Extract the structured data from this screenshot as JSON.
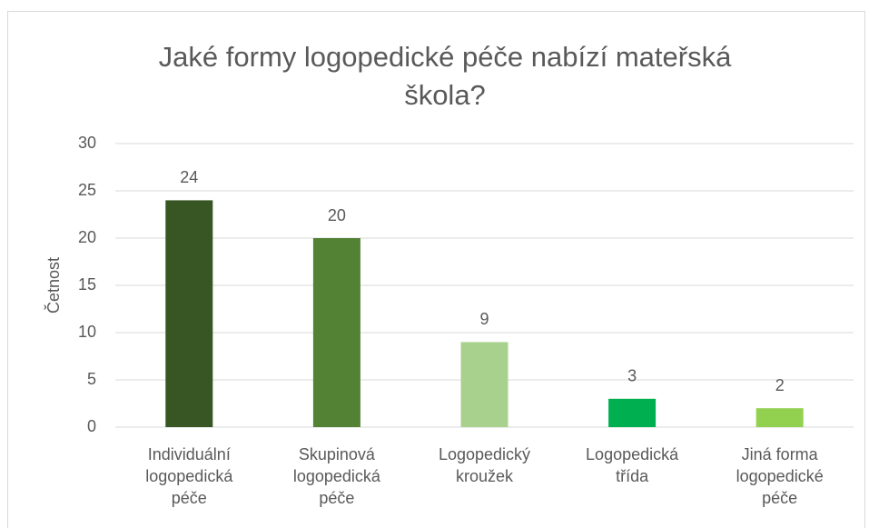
{
  "chart_data": {
    "type": "bar",
    "title": "Jaké formy logopedické péče nabízí mateřská škola?",
    "y_label": "Četnost",
    "categories": [
      "Individuální logopedická péče",
      "Skupinová logopedická péče",
      "Logopedický kroužek",
      "Logopedická třída",
      "Jiná forma logopedické péče"
    ],
    "values": [
      24,
      20,
      9,
      3,
      2
    ],
    "colors": [
      "#375623",
      "#548235",
      "#a9d18e",
      "#00b050",
      "#92d050"
    ],
    "ylim": [
      0,
      30
    ],
    "yticks": [
      0,
      5,
      10,
      15,
      20,
      25,
      30
    ],
    "grid": true
  }
}
